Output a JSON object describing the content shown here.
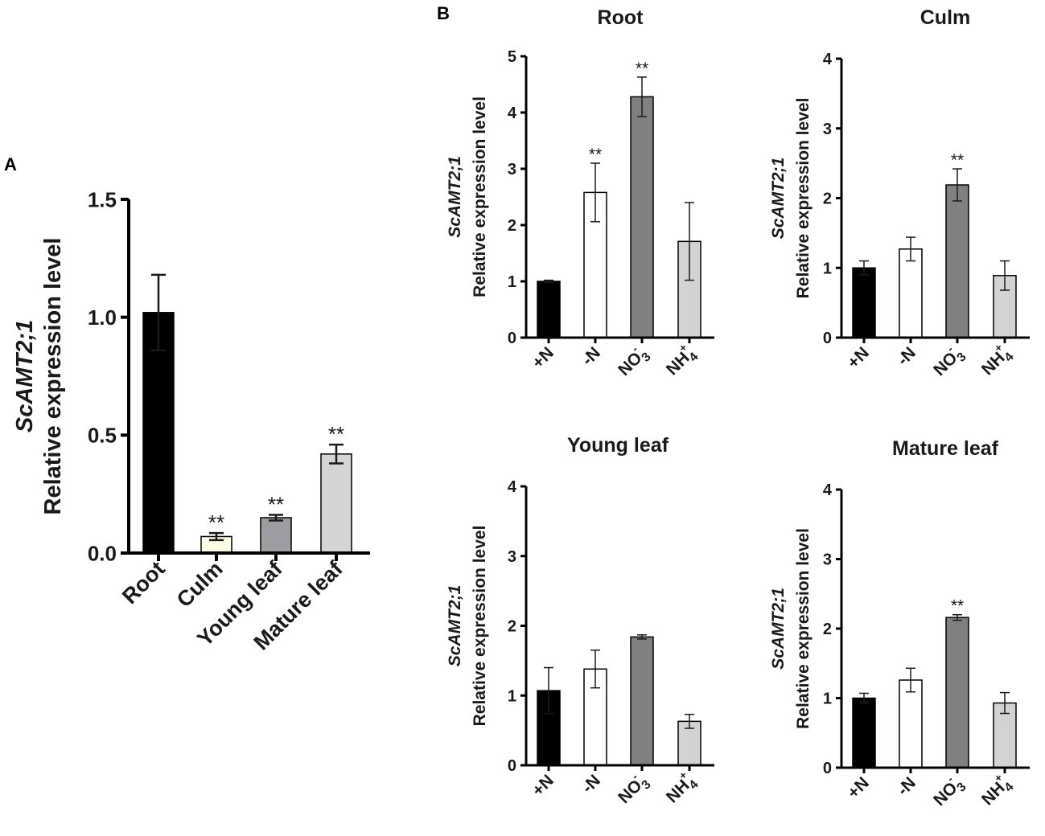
{
  "chart_data": [
    {
      "id": "A",
      "panel_label": "A",
      "type": "bar",
      "title": "",
      "ylabel_gene": "ScAMT2;1",
      "ylabel": "Relative expression level",
      "categories": [
        "Root",
        "Culm",
        "Young leaf",
        "Mature leaf"
      ],
      "values": [
        1.02,
        0.07,
        0.15,
        0.42
      ],
      "errors": [
        0.16,
        0.015,
        0.012,
        0.04
      ],
      "significance": [
        "",
        "**",
        "**",
        "**"
      ],
      "colors": [
        "#000000",
        "#fefee6",
        "#9c9ca2",
        "#d4d4d4"
      ],
      "ylim": [
        0,
        1.5
      ],
      "yticks": [
        "0.0",
        "0.5",
        "1.0",
        "1.5"
      ]
    },
    {
      "id": "B1",
      "panel_label": "B",
      "type": "bar",
      "title": "Root",
      "ylabel_gene": "ScAMT2;1",
      "ylabel": "Relative expression level",
      "categories": [
        "+N",
        "-N",
        "NO3-",
        "NH4+"
      ],
      "values": [
        1.0,
        2.58,
        4.28,
        1.71
      ],
      "errors": [
        0.02,
        0.52,
        0.35,
        0.69
      ],
      "significance": [
        "",
        "**",
        "**",
        ""
      ],
      "colors": [
        "#000000",
        "#ffffff",
        "#808080",
        "#d3d3d3"
      ],
      "ylim": [
        0,
        5
      ],
      "yticks": [
        "0",
        "1",
        "2",
        "3",
        "4",
        "5"
      ]
    },
    {
      "id": "B2",
      "panel_label": "",
      "type": "bar",
      "title": "Culm",
      "ylabel_gene": "ScAMT2;1",
      "ylabel": "Relative expression level",
      "categories": [
        "+N",
        "-N",
        "NO3-",
        "NH4+"
      ],
      "values": [
        1.0,
        1.27,
        2.19,
        0.89
      ],
      "errors": [
        0.1,
        0.17,
        0.23,
        0.21
      ],
      "significance": [
        "",
        "",
        "**",
        ""
      ],
      "colors": [
        "#000000",
        "#ffffff",
        "#808080",
        "#d3d3d3"
      ],
      "ylim": [
        0,
        4
      ],
      "yticks": [
        "0",
        "1",
        "2",
        "3",
        "4"
      ]
    },
    {
      "id": "B3",
      "panel_label": "",
      "type": "bar",
      "title": "Young leaf",
      "ylabel_gene": "ScAMT2;1",
      "ylabel": "Relative expression level",
      "categories": [
        "+N",
        "-N",
        "NO3-",
        "NH4+"
      ],
      "values": [
        1.07,
        1.38,
        1.84,
        0.63
      ],
      "errors": [
        0.33,
        0.27,
        0.03,
        0.1
      ],
      "significance": [
        "",
        "",
        "",
        ""
      ],
      "colors": [
        "#000000",
        "#ffffff",
        "#808080",
        "#d3d3d3"
      ],
      "ylim": [
        0,
        4
      ],
      "yticks": [
        "0",
        "1",
        "2",
        "3",
        "4"
      ]
    },
    {
      "id": "B4",
      "panel_label": "",
      "type": "bar",
      "title": "Mature leaf",
      "ylabel_gene": "ScAMT2;1",
      "ylabel": "Relative expression level",
      "categories": [
        "+N",
        "-N",
        "NO3-",
        "NH4+"
      ],
      "values": [
        1.0,
        1.26,
        2.16,
        0.93
      ],
      "errors": [
        0.07,
        0.17,
        0.04,
        0.15
      ],
      "significance": [
        "",
        "",
        "**",
        ""
      ],
      "colors": [
        "#000000",
        "#ffffff",
        "#808080",
        "#d3d3d3"
      ],
      "ylim": [
        0,
        4
      ],
      "yticks": [
        "0",
        "1",
        "2",
        "3",
        "4"
      ]
    }
  ]
}
